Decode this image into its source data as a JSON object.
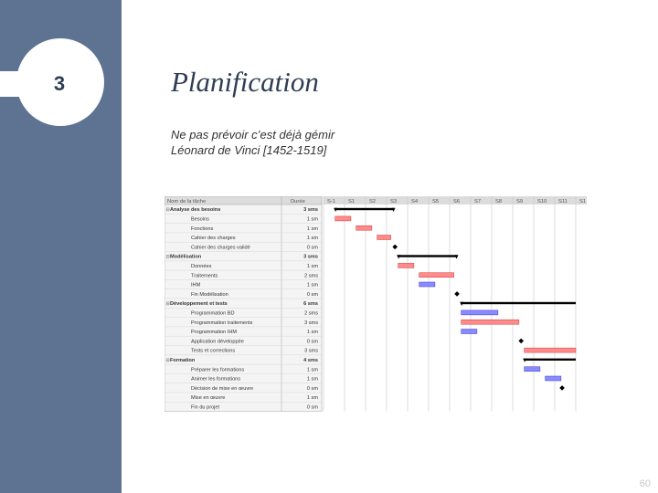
{
  "slide": {
    "number": "3",
    "title": "Planification",
    "quote_line1": "Ne pas prévoir c’est déjà gémir",
    "quote_line2": "Léonard de Vinci [1452-1519]",
    "page_number": "60"
  },
  "gantt": {
    "header": {
      "name": "Nom de la tâche",
      "duration": "Durée"
    },
    "weeks": [
      "S-1",
      "S1",
      "S2",
      "S3",
      "S4",
      "S5",
      "S6",
      "S7",
      "S8",
      "S9",
      "S10",
      "S11",
      "S1"
    ],
    "tasks": [
      {
        "name": "Analyse des besoins",
        "duration": "3 sms",
        "kind": "summary",
        "start": 0.55,
        "end": 3.35
      },
      {
        "name": "Besoins",
        "duration": "1 sm",
        "kind": "task",
        "color": "red",
        "start": 0.55,
        "end": 1.3
      },
      {
        "name": "Fonctions",
        "duration": "1 sm",
        "kind": "task",
        "color": "red",
        "start": 1.55,
        "end": 2.3
      },
      {
        "name": "Cahier des charges",
        "duration": "1 sm",
        "kind": "task",
        "color": "red",
        "start": 2.55,
        "end": 3.2
      },
      {
        "name": "Cahier des charges validé",
        "duration": "0 sm",
        "kind": "milestone",
        "at": 3.4
      },
      {
        "name": "Modélisation",
        "duration": "3 sms",
        "kind": "summary",
        "start": 3.55,
        "end": 6.35
      },
      {
        "name": "Données",
        "duration": "1 sm",
        "kind": "task",
        "color": "red",
        "start": 3.55,
        "end": 4.3
      },
      {
        "name": "Traitements",
        "duration": "2 sms",
        "kind": "task",
        "color": "red",
        "start": 4.55,
        "end": 6.2
      },
      {
        "name": "IHM",
        "duration": "1 sm",
        "kind": "task",
        "color": "blue",
        "start": 4.55,
        "end": 5.3
      },
      {
        "name": "Fin Modélisation",
        "duration": "0 sm",
        "kind": "milestone",
        "at": 6.35
      },
      {
        "name": "Développement et tests",
        "duration": "6 sms",
        "kind": "summary",
        "start": 6.55,
        "end": 12
      },
      {
        "name": "Programmation BD",
        "duration": "2 sms",
        "kind": "task",
        "color": "blue",
        "start": 6.55,
        "end": 8.3
      },
      {
        "name": "Programmation traitements",
        "duration": "3 sms",
        "kind": "task",
        "color": "red",
        "start": 6.55,
        "end": 9.3
      },
      {
        "name": "Programmation IHM",
        "duration": "1 sm",
        "kind": "task",
        "color": "blue",
        "start": 6.55,
        "end": 7.3
      },
      {
        "name": "Application développée",
        "duration": "0 sm",
        "kind": "milestone",
        "at": 9.4
      },
      {
        "name": "Tests et corrections",
        "duration": "3 sms",
        "kind": "task",
        "color": "red",
        "start": 9.55,
        "end": 12
      },
      {
        "name": "Formation",
        "duration": "4 sms",
        "kind": "summary",
        "start": 9.55,
        "end": 12
      },
      {
        "name": "Préparer les formations",
        "duration": "1 sm",
        "kind": "task",
        "color": "blue",
        "start": 9.55,
        "end": 10.3
      },
      {
        "name": "Animer les formations",
        "duration": "1 sm",
        "kind": "task",
        "color": "blue",
        "start": 10.55,
        "end": 11.3
      },
      {
        "name": "Décision de mise en œuvre",
        "duration": "0 sm",
        "kind": "milestone",
        "at": 11.35
      },
      {
        "name": "Mise en œuvre",
        "duration": "1 sm",
        "kind": "task",
        "color": "none",
        "start": 0,
        "end": 0
      },
      {
        "name": "Fin du projet",
        "duration": "0 sm",
        "kind": "none"
      }
    ]
  },
  "colors": {
    "sidebar": "#5d7391",
    "red_bar": "#ff8a8a",
    "blue_bar": "#8a8aff"
  }
}
